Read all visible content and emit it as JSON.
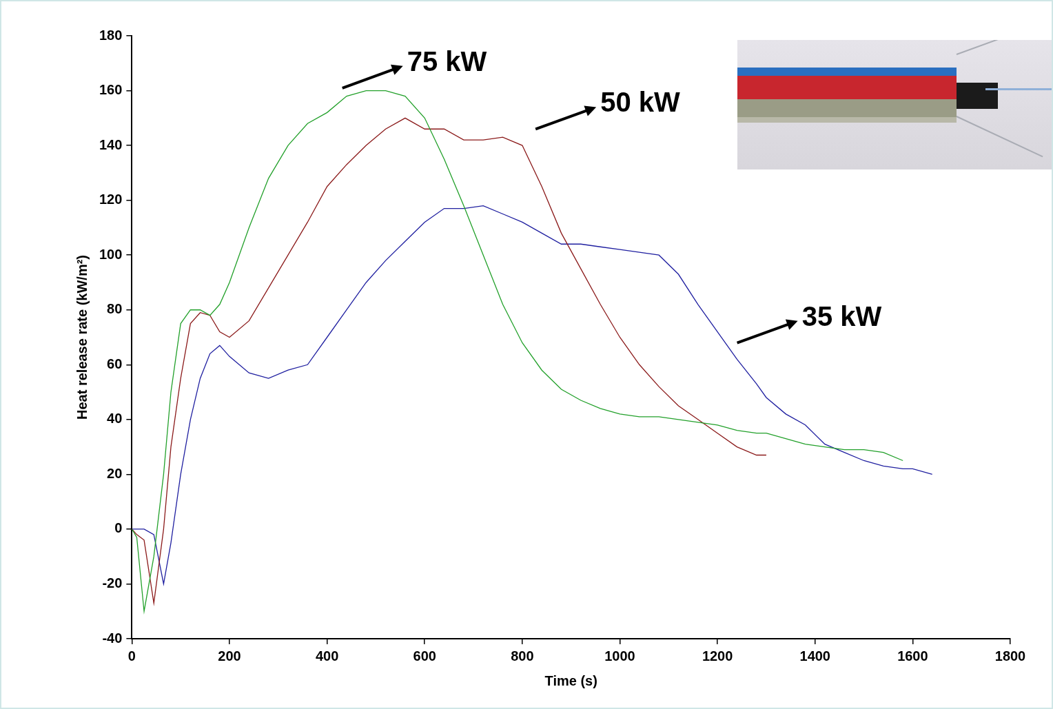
{
  "chart_data": {
    "type": "line",
    "x_label": "Time (s)",
    "y_label": "Heat release rate (kW/m²)",
    "x": [
      0,
      10,
      25,
      45,
      65,
      80,
      100,
      120,
      140,
      160,
      180,
      200,
      240,
      280,
      320,
      360,
      400,
      440,
      480,
      520,
      560,
      600,
      640,
      680,
      720,
      760,
      800,
      840,
      880,
      920,
      960,
      1000,
      1040,
      1080,
      1120,
      1160,
      1200,
      1240,
      1280,
      1300,
      1340,
      1380,
      1420,
      1460,
      1500,
      1540,
      1580,
      1600,
      1640
    ],
    "series": [
      {
        "name": "75 kW",
        "color": "#22a02a",
        "values": [
          0,
          -3,
          -30,
          -10,
          20,
          50,
          75,
          80,
          80,
          78,
          82,
          90,
          110,
          128,
          140,
          148,
          152,
          158,
          160,
          160,
          158,
          150,
          135,
          118,
          100,
          82,
          68,
          58,
          51,
          47,
          44,
          42,
          41,
          41,
          40,
          39,
          38,
          36,
          35,
          35,
          33,
          31,
          30,
          29,
          29,
          28,
          25,
          null,
          null
        ]
      },
      {
        "name": "50 kW",
        "color": "#8b1a1a",
        "values": [
          0,
          -2,
          -4,
          -27,
          0,
          30,
          55,
          75,
          79,
          78,
          72,
          70,
          76,
          88,
          100,
          112,
          125,
          133,
          140,
          146,
          150,
          146,
          146,
          142,
          142,
          143,
          140,
          125,
          108,
          95,
          82,
          70,
          60,
          52,
          45,
          40,
          35,
          30,
          27,
          27,
          null,
          null,
          null,
          null,
          null,
          null,
          null,
          null,
          null
        ]
      },
      {
        "name": "35 kW",
        "color": "#1f1fa0",
        "values": [
          0,
          0,
          0,
          -2,
          -20,
          -5,
          20,
          40,
          55,
          64,
          67,
          63,
          57,
          55,
          58,
          60,
          70,
          80,
          90,
          98,
          105,
          112,
          117,
          117,
          118,
          115,
          112,
          108,
          104,
          104,
          103,
          102,
          101,
          100,
          93,
          82,
          72,
          62,
          53,
          48,
          42,
          38,
          31,
          28,
          25,
          23,
          22,
          22,
          20
        ]
      }
    ],
    "xlim": [
      0,
      1800
    ],
    "xticks": [
      0,
      200,
      400,
      600,
      800,
      1000,
      1200,
      1400,
      1600,
      1800
    ],
    "ylim": [
      -40,
      180
    ],
    "yticks": [
      -40,
      -20,
      0,
      20,
      40,
      60,
      80,
      100,
      120,
      140,
      160,
      180
    ],
    "grid": false,
    "annotations": [
      {
        "text": "75 kW",
        "x": 564,
        "y": 170
      },
      {
        "text": "50 kW",
        "x": 960,
        "y": 155
      },
      {
        "text": "35 kW",
        "x": 1373,
        "y": 77
      }
    ]
  }
}
